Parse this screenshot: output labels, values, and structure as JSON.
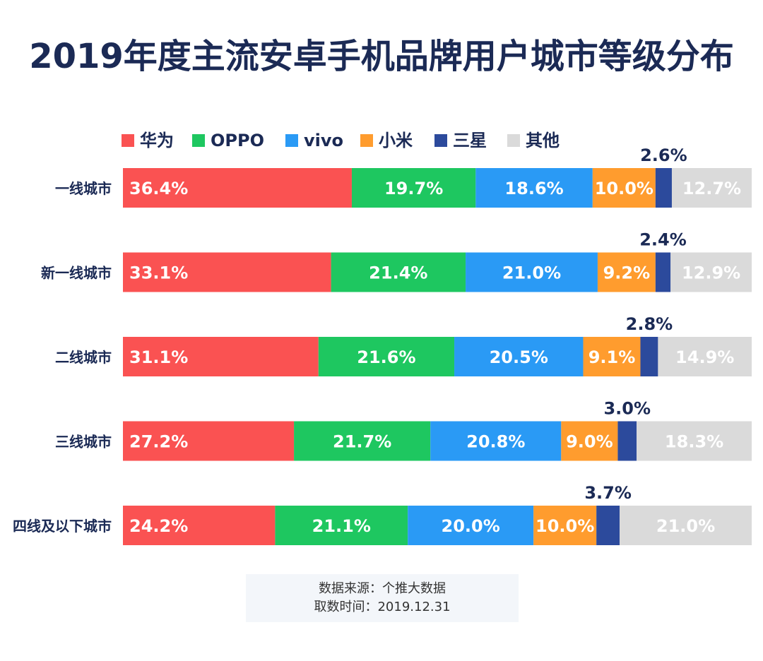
{
  "chart_data": {
    "type": "bar",
    "orientation": "horizontal-stacked-100",
    "title": "2019年度主流安卓手机品牌用户城市等级分布",
    "categories": [
      "一线城市",
      "新一线城市",
      "二线城市",
      "三线城市",
      "四线及以下城市"
    ],
    "series": [
      {
        "name": "华为",
        "values": [
          36.4,
          33.1,
          31.1,
          27.2,
          24.2
        ],
        "labels": [
          "36.4%",
          "33.1%",
          "31.1%",
          "27.2%",
          "24.2%"
        ],
        "color": "#fa5252",
        "label_color": "#ffffff"
      },
      {
        "name": "OPPO",
        "values": [
          19.7,
          21.4,
          21.6,
          21.7,
          21.1
        ],
        "labels": [
          "19.7%",
          "21.4%",
          "21.6%",
          "21.7%",
          "21.1%"
        ],
        "color": "#1ec760",
        "label_color": "#ffffff"
      },
      {
        "name": "vivo",
        "values": [
          18.6,
          21.0,
          20.5,
          20.8,
          20.0
        ],
        "labels": [
          "18.6%",
          "21.0%",
          "20.5%",
          "20.8%",
          "20.0%"
        ],
        "color": "#2a9af5",
        "label_color": "#ffffff"
      },
      {
        "name": "小米",
        "values": [
          10.0,
          9.2,
          9.1,
          9.0,
          10.0
        ],
        "labels": [
          "10.0%",
          "9.2%",
          "9.1%",
          "9.0%",
          "10.0%"
        ],
        "color": "#ff9c2e",
        "label_color": "#ffffff"
      },
      {
        "name": "三星",
        "values": [
          2.6,
          2.4,
          2.8,
          3.0,
          3.7
        ],
        "labels": [
          "2.6%",
          "2.4%",
          "2.8%",
          "3.0%",
          "3.7%"
        ],
        "color": "#2c4a9c",
        "label_color": "#1b2a55",
        "label_position": "above"
      },
      {
        "name": "其他",
        "values": [
          12.7,
          12.9,
          14.9,
          18.3,
          21.0
        ],
        "labels": [
          "12.7%",
          "12.9%",
          "14.9%",
          "18.3%",
          "21.0%"
        ],
        "color": "#dadada",
        "label_color": "#ffffff"
      }
    ],
    "xlim": [
      0,
      100
    ],
    "legend_position": "top",
    "grid": false
  },
  "source": {
    "line1": "数据来源：个推大数据",
    "line2": "取数时间：2019.12.31"
  }
}
